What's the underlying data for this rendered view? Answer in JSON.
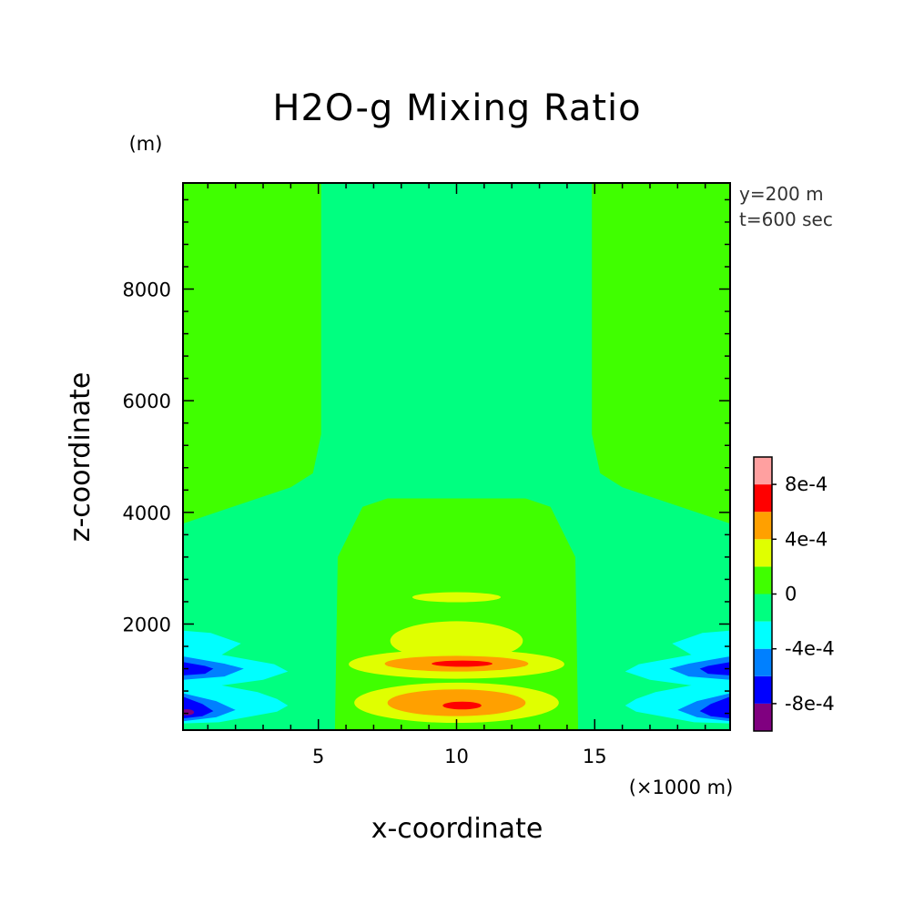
{
  "chart_data": {
    "type": "heatmap",
    "title": "H2O-g Mixing Ratio",
    "xlabel": "x-coordinate",
    "ylabel": "z-coordinate",
    "x_unit": "(×1000 m)",
    "y_unit": "(m)",
    "annotations": [
      "y=200 m",
      "t=600 sec"
    ],
    "x_range": [
      0.1,
      19.9
    ],
    "y_range": [
      100,
      9900
    ],
    "x_ticks": [
      5,
      10,
      15
    ],
    "x_tick_labels": [
      "5",
      "10",
      "15"
    ],
    "y_ticks": [
      2000,
      4000,
      6000,
      8000
    ],
    "y_tick_labels": [
      "2000",
      "4000",
      "6000",
      "8000"
    ],
    "grid": false,
    "colorbar": {
      "position": "right",
      "levels": [
        -0.001,
        -0.0008,
        -0.0006,
        -0.0004,
        -0.0002,
        0,
        0.0002,
        0.0004,
        0.0006,
        0.0008,
        0.001
      ],
      "colors": [
        "#800080",
        "#0000ff",
        "#0080ff",
        "#00ffff",
        "#00ff80",
        "#40ff00",
        "#e0ff00",
        "#ffa000",
        "#ff0000",
        "#ffa0a0"
      ],
      "tick_values": [
        -0.0008,
        -0.0004,
        0,
        0.0004,
        0.0008
      ],
      "tick_labels": [
        "-8e-4",
        "-4e-4",
        "0",
        "4e-4",
        "8e-4"
      ]
    },
    "background_color": "#40ff00",
    "regions": [
      {
        "band": "0 to 2e-4",
        "color": "#40ff00",
        "shape": "rect",
        "x": [
          0.1,
          19.9
        ],
        "z": [
          100,
          9900
        ]
      },
      {
        "band": "-2e-4 to 0",
        "color": "#00ff80",
        "shape": "polygon",
        "points": [
          [
            5.1,
            9900
          ],
          [
            5.1,
            5400
          ],
          [
            4.8,
            4700
          ],
          [
            4.0,
            4450
          ],
          [
            0.1,
            3800
          ],
          [
            0.1,
            100
          ],
          [
            19.9,
            100
          ],
          [
            19.9,
            3800
          ],
          [
            16.0,
            4450
          ],
          [
            15.2,
            4700
          ],
          [
            14.9,
            5400
          ],
          [
            14.9,
            9900
          ]
        ]
      },
      {
        "band": "0 to 2e-4",
        "color": "#40ff00",
        "shape": "polygon",
        "points": [
          [
            5.6,
            100
          ],
          [
            5.7,
            3200
          ],
          [
            6.6,
            4100
          ],
          [
            7.5,
            4250
          ],
          [
            12.5,
            4250
          ],
          [
            13.4,
            4100
          ],
          [
            14.3,
            3200
          ],
          [
            14.4,
            100
          ]
        ]
      },
      {
        "band": "2e-4 to 4e-4",
        "color": "#e0ff00",
        "shape": "ellipse",
        "cx": 10.0,
        "cz": 2480,
        "rx": 1.6,
        "rz": 90
      },
      {
        "band": "2e-4 to 4e-4",
        "color": "#e0ff00",
        "shape": "ellipse",
        "cx": 10.0,
        "cz": 1700,
        "rx": 2.4,
        "rz": 350
      },
      {
        "band": "2e-4 to 4e-4",
        "color": "#e0ff00",
        "shape": "ellipse",
        "cx": 10.0,
        "cz": 1280,
        "rx": 3.9,
        "rz": 260
      },
      {
        "band": "4e-4 to 6e-4",
        "color": "#ffa000",
        "shape": "ellipse",
        "cx": 10.0,
        "cz": 1290,
        "rx": 2.6,
        "rz": 140
      },
      {
        "band": "6e-4 to 8e-4",
        "color": "#ff0000",
        "shape": "ellipse",
        "cx": 10.2,
        "cz": 1290,
        "rx": 1.1,
        "rz": 55
      },
      {
        "band": "2e-4 to 4e-4",
        "color": "#e0ff00",
        "shape": "ellipse",
        "cx": 10.0,
        "cz": 590,
        "rx": 3.7,
        "rz": 360
      },
      {
        "band": "4e-4 to 6e-4",
        "color": "#ffa000",
        "shape": "ellipse",
        "cx": 10.0,
        "cz": 590,
        "rx": 2.5,
        "rz": 240
      },
      {
        "band": "6e-4 to 8e-4",
        "color": "#ff0000",
        "shape": "ellipse",
        "cx": 10.2,
        "cz": 540,
        "rx": 0.7,
        "rz": 70
      },
      {
        "band": "-4e-4 to -2e-4",
        "color": "#00ffff",
        "shape": "polygon",
        "points": [
          [
            0.1,
            1880
          ],
          [
            1.1,
            1840
          ],
          [
            2.2,
            1650
          ],
          [
            1.5,
            1450
          ],
          [
            3.4,
            1280
          ],
          [
            3.9,
            1150
          ],
          [
            3.0,
            1000
          ],
          [
            1.5,
            900
          ],
          [
            2.8,
            780
          ],
          [
            3.5,
            660
          ],
          [
            3.9,
            540
          ],
          [
            3.5,
            430
          ],
          [
            2.5,
            340
          ],
          [
            1.4,
            240
          ],
          [
            0.1,
            220
          ]
        ]
      },
      {
        "band": "-6e-4 to -4e-4",
        "color": "#0080ff",
        "shape": "polygon",
        "points": [
          [
            0.1,
            1420
          ],
          [
            1.6,
            1290
          ],
          [
            2.3,
            1200
          ],
          [
            1.6,
            1060
          ],
          [
            0.1,
            1000
          ]
        ]
      },
      {
        "band": "-8e-4 to -6e-4",
        "color": "#0000ff",
        "shape": "polygon",
        "points": [
          [
            0.1,
            1320
          ],
          [
            0.9,
            1250
          ],
          [
            1.2,
            1200
          ],
          [
            0.9,
            1110
          ],
          [
            0.1,
            1080
          ]
        ]
      },
      {
        "band": "-6e-4 to -4e-4",
        "color": "#0080ff",
        "shape": "polygon",
        "points": [
          [
            0.1,
            760
          ],
          [
            1.3,
            620
          ],
          [
            2.0,
            460
          ],
          [
            1.3,
            330
          ],
          [
            0.1,
            260
          ]
        ]
      },
      {
        "band": "-8e-4 to -6e-4",
        "color": "#0000ff",
        "shape": "polygon",
        "points": [
          [
            0.1,
            700
          ],
          [
            0.8,
            570
          ],
          [
            1.2,
            440
          ],
          [
            0.8,
            350
          ],
          [
            0.1,
            310
          ]
        ]
      },
      {
        "band": "-1e-3 to -8e-4",
        "color": "#800080",
        "shape": "ellipse",
        "cx": 0.25,
        "cz": 420,
        "rx": 0.25,
        "rz": 55
      },
      {
        "band": "-4e-4 to -2e-4",
        "color": "#00ffff",
        "shape": "polygon",
        "points": [
          [
            19.9,
            1880
          ],
          [
            18.9,
            1840
          ],
          [
            17.8,
            1650
          ],
          [
            18.5,
            1450
          ],
          [
            16.6,
            1280
          ],
          [
            16.1,
            1150
          ],
          [
            17.0,
            1000
          ],
          [
            18.5,
            900
          ],
          [
            17.2,
            780
          ],
          [
            16.5,
            660
          ],
          [
            16.1,
            540
          ],
          [
            16.5,
            430
          ],
          [
            17.5,
            340
          ],
          [
            18.6,
            240
          ],
          [
            19.9,
            220
          ]
        ]
      },
      {
        "band": "-6e-4 to -4e-4",
        "color": "#0080ff",
        "shape": "polygon",
        "points": [
          [
            19.9,
            1420
          ],
          [
            18.4,
            1290
          ],
          [
            17.7,
            1200
          ],
          [
            18.4,
            1060
          ],
          [
            19.9,
            1000
          ]
        ]
      },
      {
        "band": "-8e-4 to -6e-4",
        "color": "#0000ff",
        "shape": "polygon",
        "points": [
          [
            19.9,
            1320
          ],
          [
            19.1,
            1250
          ],
          [
            18.8,
            1200
          ],
          [
            19.1,
            1110
          ],
          [
            19.9,
            1080
          ]
        ]
      },
      {
        "band": "-6e-4 to -4e-4",
        "color": "#0080ff",
        "shape": "polygon",
        "points": [
          [
            19.9,
            760
          ],
          [
            18.7,
            620
          ],
          [
            18.0,
            460
          ],
          [
            18.7,
            330
          ],
          [
            19.9,
            260
          ]
        ]
      },
      {
        "band": "-8e-4 to -6e-4",
        "color": "#0000ff",
        "shape": "polygon",
        "points": [
          [
            19.9,
            700
          ],
          [
            19.2,
            570
          ],
          [
            18.8,
            440
          ],
          [
            19.2,
            350
          ],
          [
            19.9,
            310
          ]
        ]
      }
    ]
  }
}
